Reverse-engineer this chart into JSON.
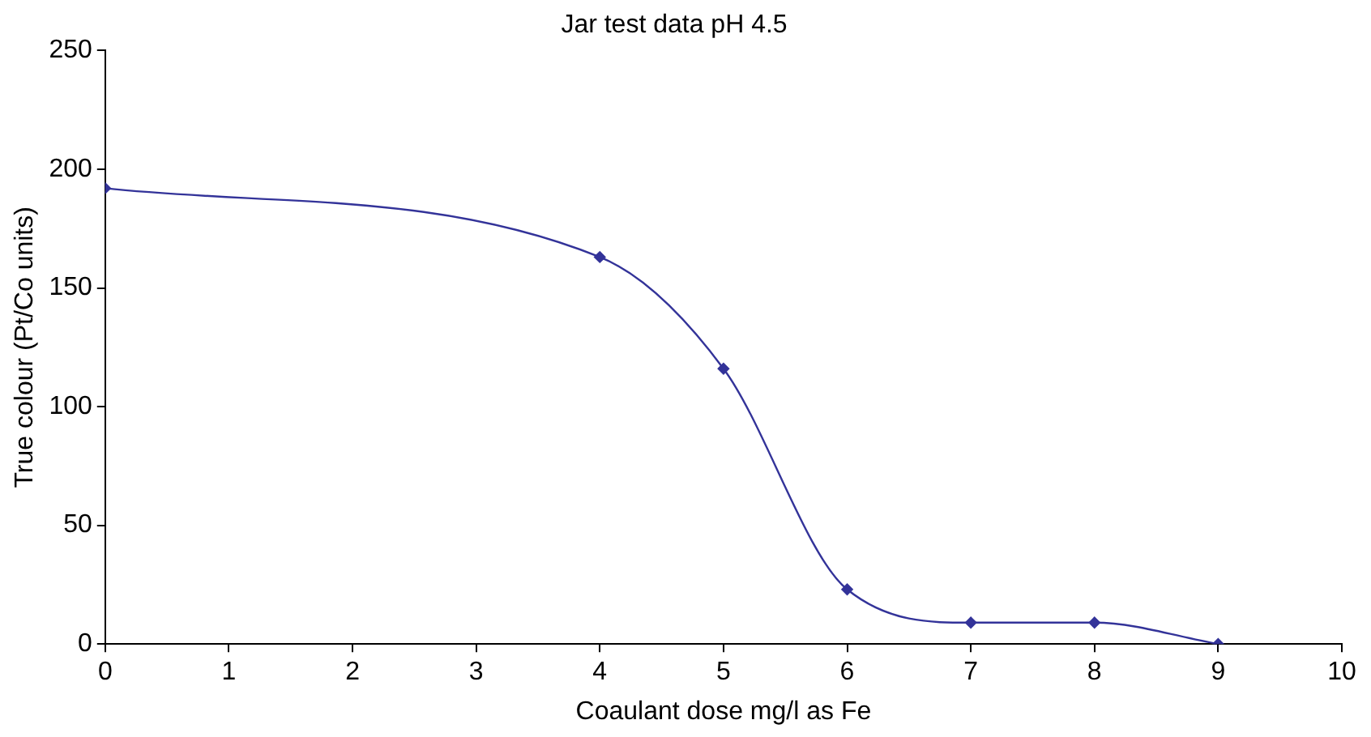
{
  "chart_data": {
    "type": "line",
    "title": "Jar test data pH 4.5",
    "xlabel": "Coaulant dose mg/l as Fe",
    "ylabel": "True colour (Pt/Co units)",
    "x": [
      0,
      4,
      5,
      6,
      7,
      8,
      9
    ],
    "series": [
      {
        "color": "#333399",
        "values": [
          192,
          163,
          116,
          23,
          9,
          9,
          0
        ]
      }
    ],
    "xlim": [
      0,
      10
    ],
    "xticks": [
      0,
      1,
      2,
      3,
      4,
      5,
      6,
      7,
      8,
      9,
      10
    ],
    "ylim": [
      0,
      250
    ],
    "yticks": [
      0,
      50,
      100,
      150,
      200,
      250
    ],
    "grid": false,
    "legend": false,
    "marker": "diamond",
    "line_style": "solid"
  }
}
